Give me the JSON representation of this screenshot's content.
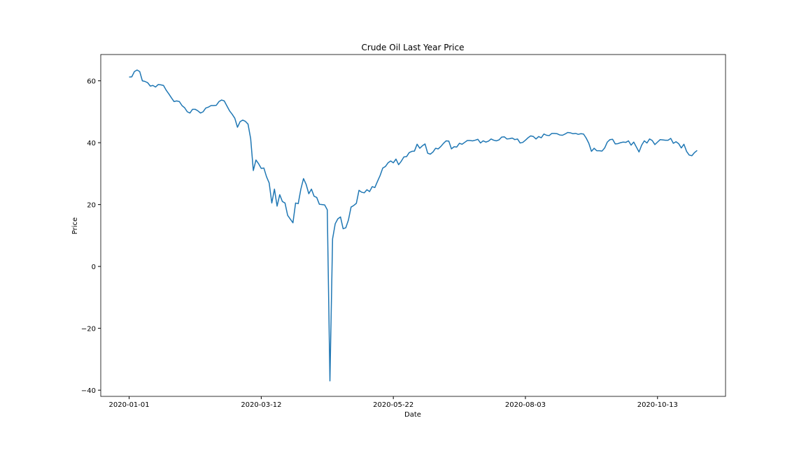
{
  "chart_data": {
    "type": "line",
    "title": "Crude Oil Last Year Price",
    "x_label": "Date",
    "y_label": "Price",
    "categories": [
      "2020-01-01",
      null,
      null,
      null,
      null,
      null,
      null,
      null,
      null,
      null,
      null,
      null,
      null,
      null,
      null,
      null,
      null,
      null,
      null,
      null,
      null,
      null,
      null,
      null,
      null,
      null,
      null,
      null,
      null,
      null,
      null,
      null,
      null,
      null,
      null,
      null,
      null,
      null,
      null,
      null,
      null,
      null,
      null,
      null,
      null,
      null,
      null,
      null,
      null,
      null,
      "2020-03-12",
      null,
      null,
      null,
      null,
      null,
      null,
      null,
      null,
      null,
      null,
      null,
      null,
      null,
      null,
      null,
      null,
      null,
      null,
      null,
      null,
      null,
      null,
      null,
      null,
      null,
      null,
      null,
      null,
      null,
      null,
      null,
      null,
      null,
      null,
      null,
      null,
      null,
      null,
      null,
      null,
      null,
      null,
      null,
      null,
      null,
      null,
      null,
      null,
      null,
      "2020-05-22",
      null,
      null,
      null,
      null,
      null,
      null,
      null,
      null,
      null,
      null,
      null,
      null,
      null,
      null,
      null,
      null,
      null,
      null,
      null,
      null,
      null,
      null,
      null,
      null,
      null,
      null,
      null,
      null,
      null,
      null,
      null,
      null,
      null,
      null,
      null,
      null,
      null,
      null,
      null,
      null,
      null,
      null,
      null,
      null,
      null,
      null,
      null,
      null,
      null,
      "2020-08-03",
      null,
      null,
      null,
      null,
      null,
      null,
      null,
      null,
      null,
      null,
      null,
      null,
      null,
      null,
      null,
      null,
      null,
      null,
      null,
      null,
      null,
      null,
      null,
      null,
      null,
      null,
      null,
      null,
      null,
      null,
      null,
      null,
      null,
      null,
      null,
      null,
      null,
      null,
      null,
      null,
      null,
      null,
      null,
      null,
      null,
      null,
      null,
      null,
      null,
      "2020-10-13",
      null,
      null,
      null,
      null,
      null,
      null,
      null,
      null,
      null,
      null,
      null,
      null,
      null,
      null,
      null
    ],
    "series": [
      {
        "color": "#1f77b4",
        "values": [
          61.2,
          61.3,
          63,
          63.5,
          63,
          60,
          59.8,
          59.4,
          58.3,
          58.5,
          58,
          58.8,
          58.7,
          58.5,
          57,
          55.8,
          54.5,
          53.3,
          53.5,
          53.3,
          52,
          51.3,
          50,
          49.6,
          50.8,
          50.8,
          50.3,
          49.6,
          50,
          51.2,
          51.5,
          52,
          52,
          52.1,
          53.3,
          53.8,
          53.5,
          51.9,
          50.3,
          49.2,
          47.9,
          45,
          46.8,
          47.3,
          46.9,
          46,
          41.3,
          31,
          34.4,
          33.2,
          31.7,
          31.8,
          29,
          27,
          20.5,
          25,
          19.5,
          23.2,
          21,
          20.5,
          16.5,
          15.3,
          14.1,
          20.5,
          20.3,
          25,
          28.4,
          26.5,
          23.5,
          25,
          22.7,
          22.3,
          20.1,
          20,
          19.9,
          18.3,
          -37,
          8.9,
          13.8,
          15.4,
          16,
          12.2,
          12.5,
          15,
          19.2,
          19.7,
          20.4,
          24.6,
          24,
          23.8,
          24.8,
          24.2,
          25.8,
          25.5,
          27.5,
          29.4,
          31.8,
          32.3,
          33.5,
          34.1,
          33.5,
          34.7,
          32.9,
          34,
          35.4,
          35.5,
          36.8,
          37.2,
          37.3,
          39.5,
          38.2,
          39,
          39.6,
          36.6,
          36.3,
          37,
          38.2,
          38,
          38.8,
          39.8,
          40.6,
          40.5,
          38,
          38.7,
          38.6,
          39.8,
          39.5,
          40.1,
          40.7,
          40.7,
          40.6,
          40.8,
          41.1,
          39.9,
          40.6,
          40.2,
          40.5,
          41.2,
          40.8,
          40.6,
          40.9,
          41.8,
          41.9,
          41.2,
          41.3,
          41.5,
          41,
          41.2,
          39.9,
          40.1,
          40.8,
          41.6,
          42.2,
          42,
          41.2,
          42,
          41.6,
          42.8,
          42.4,
          42.3,
          43,
          43,
          42.9,
          42.5,
          42.4,
          42.8,
          43.3,
          43.2,
          42.9,
          43,
          42.7,
          42.9,
          42.8,
          41.5,
          39.8,
          37.2,
          38.2,
          37.4,
          37.4,
          37.3,
          38.3,
          40.2,
          41,
          41.1,
          39.6,
          39.7,
          40,
          40.2,
          40.1,
          40.6,
          39.2,
          40.2,
          38.6,
          37,
          39.2,
          40.6,
          39.9,
          41.2,
          40.7,
          39.4,
          40.2,
          41,
          40.9,
          40.8,
          40.8,
          41.4,
          39.8,
          40.3,
          39.7,
          38.3,
          39.5,
          37.2,
          36,
          35.8,
          36.8,
          37.5
        ]
      }
    ],
    "xlim": [
      -10.75,
      225.75
    ],
    "ylim": [
      -42.0,
      68.5
    ],
    "yticks": [
      {
        "value": -40,
        "label": "−40"
      },
      {
        "value": -20,
        "label": "−20"
      },
      0,
      20,
      40,
      60
    ]
  }
}
